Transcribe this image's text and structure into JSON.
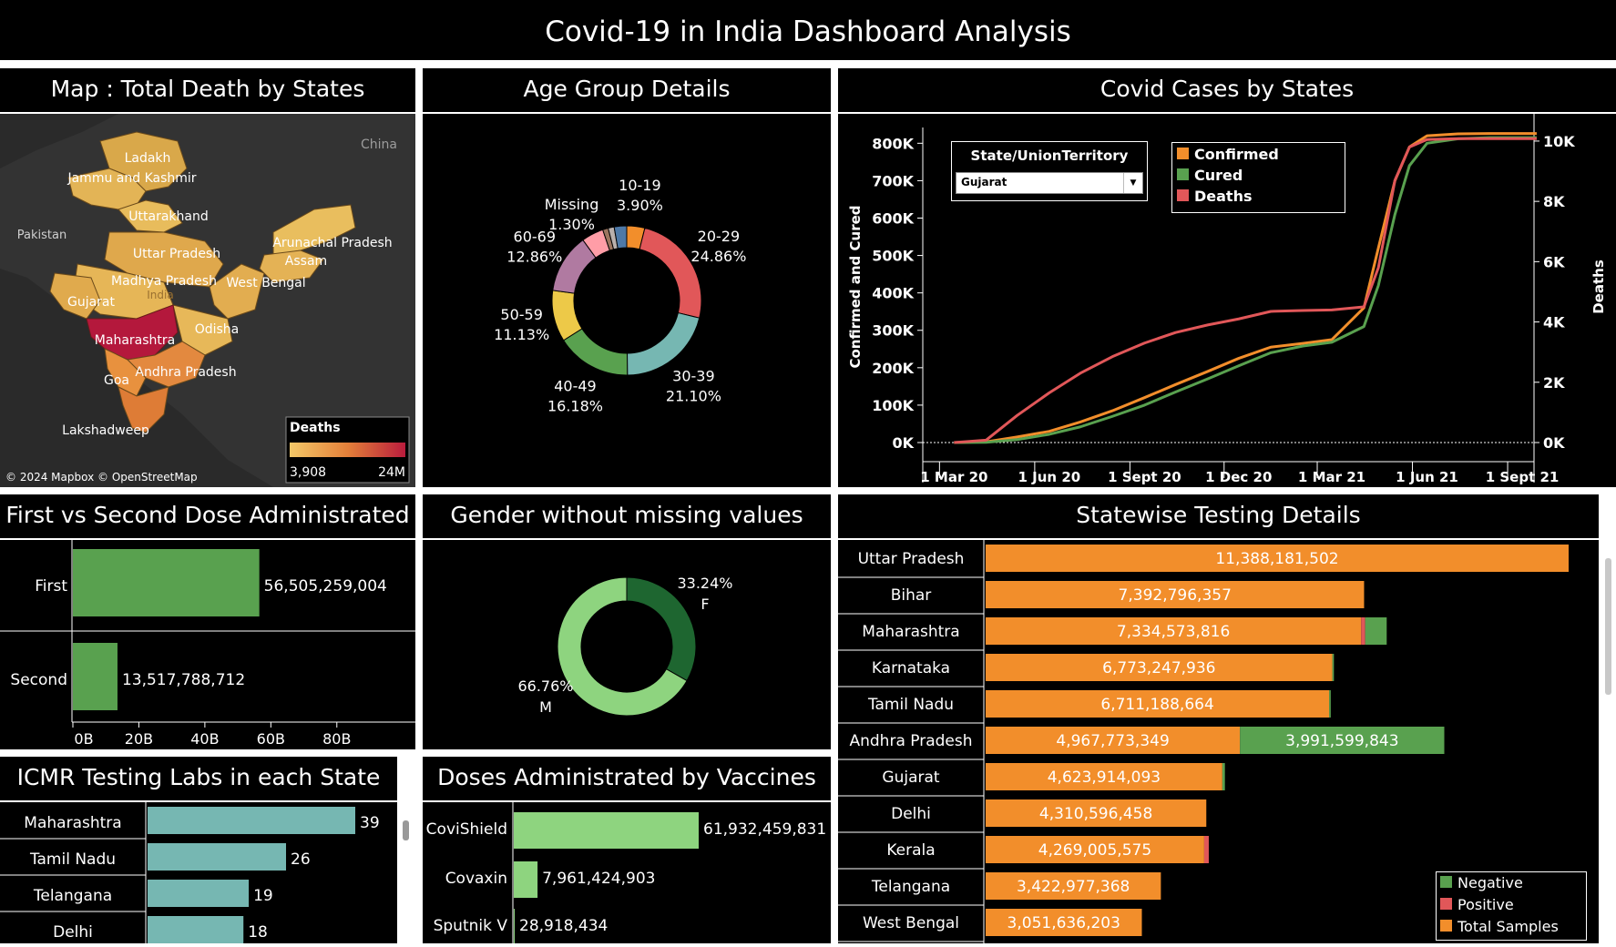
{
  "dashboard_title": "Covid-19 in India Dashboard Analysis",
  "panels": {
    "map": "Map : Total Death by States",
    "age": "Age Group Details",
    "cases": "Covid Cases by States",
    "dose": "First vs Second Dose Administrated",
    "gender": "Gender without missing values",
    "testing": "Statewise Testing Details",
    "icmr": "ICMR Testing Labs in each State",
    "vaccines": "Doses Administrated by Vaccines"
  },
  "map": {
    "country_labels": [
      "China",
      "Pakistan",
      "India"
    ],
    "state_labels": [
      "Ladakh",
      "Jammu and Kashmir",
      "Uttarakhand",
      "Arunachal Pradesh",
      "Assam",
      "Uttar Pradesh",
      "Madhya Pradesh",
      "West Bengal",
      "Gujarat",
      "Odisha",
      "Maharashtra",
      "Andhra Pradesh",
      "Goa",
      "Lakshadweep"
    ],
    "legend_title": "Deaths",
    "legend_min": "3,908",
    "legend_max": "24M",
    "attribution": "© 2024 Mapbox © OpenStreetMap",
    "colors": {
      "low": "#f1c35f",
      "mid": "#e4803a",
      "high": "#b91c3c"
    }
  },
  "filter": {
    "label": "State/UnionTerritory",
    "selected": "Gujarat"
  },
  "chart_data": [
    {
      "type": "pie",
      "name": "age",
      "slices": [
        {
          "label": "10-19",
          "pct": "3.90%",
          "value": 3.9,
          "color": "#f28e2b"
        },
        {
          "label": "20-29",
          "pct": "24.86%",
          "value": 24.86,
          "color": "#e15759"
        },
        {
          "label": "30-39",
          "pct": "21.10%",
          "value": 21.1,
          "color": "#76b7b2"
        },
        {
          "label": "40-49",
          "pct": "16.18%",
          "value": 16.18,
          "color": "#59a14f"
        },
        {
          "label": "50-59",
          "pct": "11.13%",
          "value": 11.13,
          "color": "#edc948"
        },
        {
          "label": "60-69",
          "pct": "12.86%",
          "value": 12.86,
          "color": "#b07aa1"
        },
        {
          "label": "",
          "pct": "",
          "value": 4.77,
          "color": "#ff9da7"
        },
        {
          "label": "",
          "pct": "",
          "value": 1.2,
          "color": "#9c755f"
        },
        {
          "label": "Missing",
          "pct": "1.30%",
          "value": 1.3,
          "color": "#bab0ac"
        },
        {
          "label": "",
          "pct": "",
          "value": 2.7,
          "color": "#4e79a7"
        }
      ]
    },
    {
      "type": "line",
      "name": "cases",
      "x_ticks": [
        "1 Mar 20",
        "1 Jun 20",
        "1 Sept 20",
        "1 Dec 20",
        "1 Mar 21",
        "1 Jun 21",
        "1 Sept 21"
      ],
      "y_ticks": [
        "800K",
        "700K",
        "600K",
        "500K",
        "400K",
        "300K",
        "200K",
        "100K",
        "0K"
      ],
      "y2_ticks": [
        "10K",
        "8K",
        "6K",
        "4K",
        "2K",
        "0K"
      ],
      "ylabel": "Confirmed and Cured",
      "y2label": "Deaths",
      "ylim": [
        0,
        830000
      ],
      "y2lim": [
        0,
        10300
      ],
      "x": [
        "2020-03-01",
        "2020-04-01",
        "2020-05-01",
        "2020-06-01",
        "2020-07-01",
        "2020-08-01",
        "2020-09-01",
        "2020-10-01",
        "2020-11-01",
        "2020-12-01",
        "2021-01-01",
        "2021-02-01",
        "2021-03-01",
        "2021-04-01",
        "2021-04-15",
        "2021-05-01",
        "2021-05-15",
        "2021-06-01",
        "2021-07-01",
        "2021-08-01",
        "2021-09-01",
        "2021-09-15"
      ],
      "series": [
        {
          "name": "Confirmed",
          "color": "#f28e2b",
          "values": [
            0,
            2000,
            15000,
            30000,
            55000,
            85000,
            120000,
            155000,
            190000,
            225000,
            255000,
            265000,
            275000,
            360000,
            520000,
            700000,
            790000,
            820000,
            825000,
            826000,
            826000,
            826000
          ]
        },
        {
          "name": "Cured",
          "color": "#59a14f",
          "values": [
            0,
            500,
            8000,
            22000,
            42000,
            70000,
            100000,
            135000,
            170000,
            205000,
            240000,
            258000,
            268000,
            310000,
            420000,
            610000,
            740000,
            800000,
            812000,
            815000,
            815000,
            815000
          ]
        },
        {
          "name": "Deaths",
          "axis": "right",
          "color": "#e15759",
          "values": [
            0,
            80,
            900,
            1650,
            2300,
            2850,
            3300,
            3650,
            3900,
            4100,
            4350,
            4380,
            4400,
            4500,
            5800,
            8700,
            9800,
            10050,
            10080,
            10082,
            10082,
            10082
          ]
        }
      ]
    },
    {
      "type": "bar",
      "name": "dose",
      "categories": [
        "First",
        "Second"
      ],
      "values": [
        56505259004,
        13517788712
      ],
      "labels": [
        "56,505,259,004",
        "13,517,788,712"
      ],
      "x_ticks": [
        "0B",
        "20B",
        "40B",
        "60B",
        "80B"
      ],
      "xlim": [
        0,
        90000000000
      ],
      "color": "#59a14f"
    },
    {
      "type": "pie",
      "name": "gender",
      "slices": [
        {
          "label": "F",
          "pct": "33.24%",
          "value": 33.24,
          "color": "#1e6630"
        },
        {
          "label": "M",
          "pct": "66.76%",
          "value": 66.76,
          "color": "#8ed47f"
        }
      ]
    },
    {
      "type": "bar",
      "name": "testing",
      "stacked": true,
      "categories": [
        "Uttar Pradesh",
        "Bihar",
        "Maharashtra",
        "Karnataka",
        "Tamil Nadu",
        "Andhra Pradesh",
        "Gujarat",
        "Delhi",
        "Kerala",
        "Telangana",
        "West Bengal"
      ],
      "series": [
        {
          "name": "Total Samples",
          "color": "#f28e2b",
          "values": [
            11388181502,
            7392796357,
            7334573816,
            6773247936,
            6711188664,
            4967773349,
            4623914093,
            4310596458,
            4269005575,
            3422977368,
            3051636203
          ],
          "labels": [
            "11,388,181,502",
            "7,392,796,357",
            "7,334,573,816",
            "6,773,247,936",
            "6,711,188,664",
            "4,967,773,349",
            "4,623,914,093",
            "4,310,596,458",
            "4,269,005,575",
            "3,422,977,368",
            "3,051,636,203"
          ]
        },
        {
          "name": "Positive",
          "color": "#e15759",
          "values": [
            0,
            0,
            80000000,
            0,
            0,
            0,
            0,
            0,
            90000000,
            0,
            0
          ]
        },
        {
          "name": "Negative",
          "color": "#59a14f",
          "values": [
            0,
            0,
            420000000,
            30000000,
            30000000,
            3991599843,
            50000000,
            0,
            0,
            0,
            0
          ],
          "labels": [
            "",
            "",
            "",
            "",
            "",
            "3,991,599,843",
            "",
            "",
            "",
            "",
            ""
          ]
        }
      ],
      "xlim": [
        0,
        12000000000
      ]
    },
    {
      "type": "bar",
      "name": "icmr",
      "categories": [
        "Maharashtra",
        "Tamil Nadu",
        "Telangana",
        "Delhi"
      ],
      "values": [
        39,
        26,
        19,
        18
      ],
      "xlim": [
        0,
        45
      ],
      "color": "#76b7b2"
    },
    {
      "type": "bar",
      "name": "vaccines",
      "categories": [
        "CoviShield",
        "Covaxin",
        "Sputnik V"
      ],
      "values": [
        61932459831,
        7961424903,
        28918434
      ],
      "labels": [
        "61,932,459,831",
        "7,961,424,903",
        "28,918,434"
      ],
      "xlim": [
        0,
        105000000000
      ],
      "color": "#8ed47f"
    }
  ]
}
